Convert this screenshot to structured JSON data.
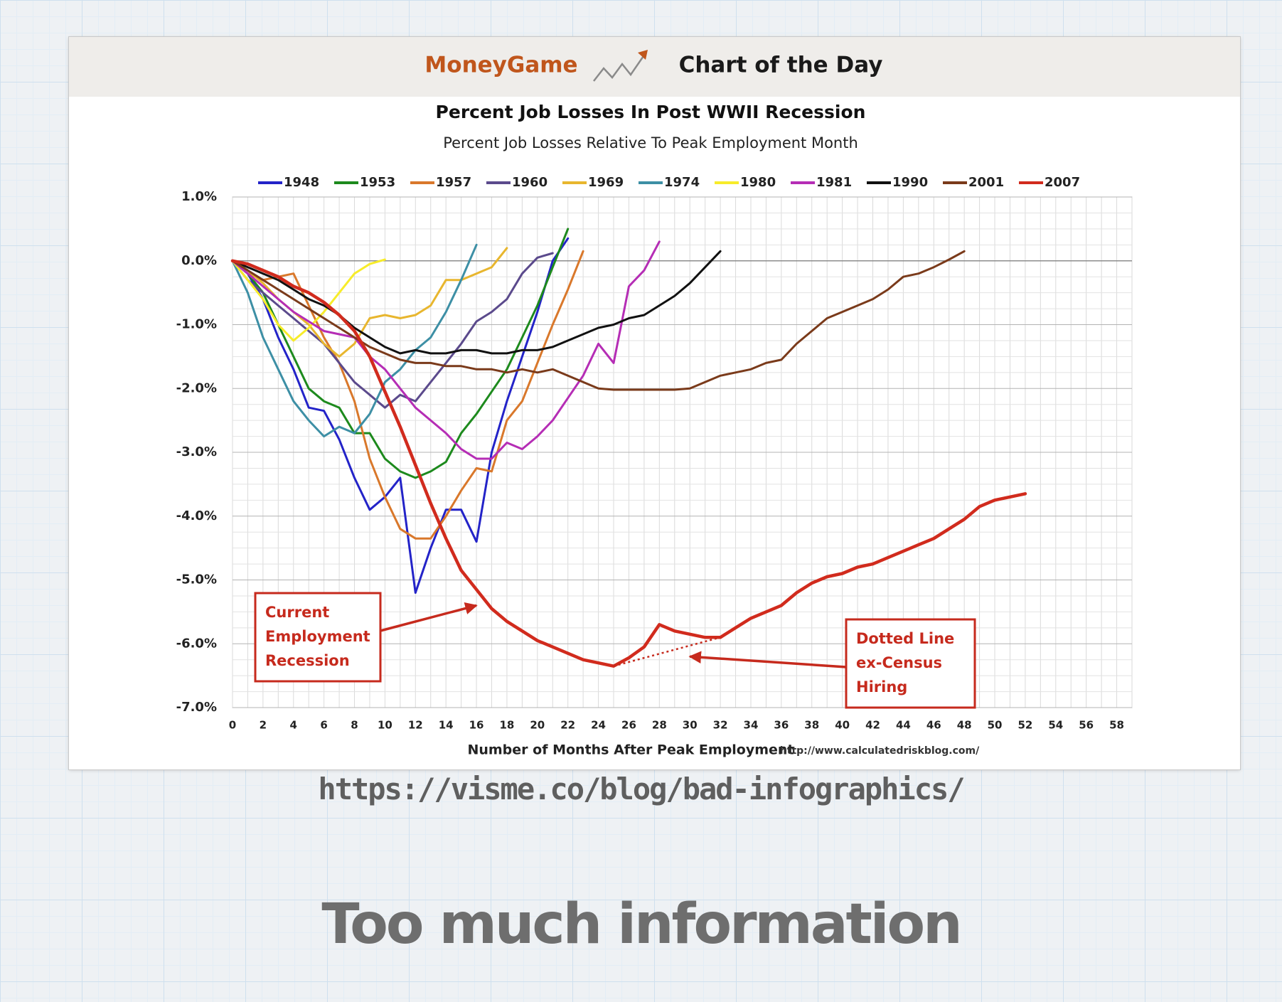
{
  "banner": {
    "brand": "MoneyGame",
    "subtitle": "Chart of the Day",
    "brand_color": "#c0561c",
    "subtitle_color": "#1a1a1a"
  },
  "slide": {
    "source_url": "https://visme.co/blog/bad-infographics/",
    "title": "Too much information"
  },
  "chart_data": {
    "type": "line",
    "title": "Percent Job Losses In Post WWII Recession",
    "subtitle": "Percent Job Losses Relative To Peak Employment Month",
    "xlabel": "Number of Months After Peak Employment",
    "ylabel": "",
    "source": "http://www.calculatedriskblog.com/",
    "xlim": [
      0,
      59
    ],
    "ylim": [
      -7.0,
      1.0
    ],
    "x_ticks": [
      0,
      2,
      4,
      6,
      8,
      10,
      12,
      14,
      16,
      18,
      20,
      22,
      24,
      26,
      28,
      30,
      32,
      34,
      36,
      38,
      40,
      42,
      44,
      46,
      48,
      50,
      52,
      54,
      56,
      58
    ],
    "y_ticks": [
      1.0,
      0.0,
      -1.0,
      -2.0,
      -3.0,
      -4.0,
      -5.0,
      -6.0,
      -7.0
    ],
    "y_tick_labels": [
      "1.0%",
      "0.0%",
      "-1.0%",
      "-2.0%",
      "-3.0%",
      "-4.0%",
      "-5.0%",
      "-6.0%",
      "-7.0%"
    ],
    "grid": true,
    "legend_position": "top",
    "series": [
      {
        "name": "1948",
        "color": "#2323c8",
        "values": [
          0,
          -0.2,
          -0.6,
          -1.2,
          -1.7,
          -2.3,
          -2.35,
          -2.8,
          -3.4,
          -3.9,
          -3.7,
          -3.4,
          -5.2,
          -4.5,
          -3.9,
          -3.9,
          -4.4,
          -3.0,
          -2.2,
          -1.5,
          -0.8,
          0,
          0.35
        ]
      },
      {
        "name": "1953",
        "color": "#1d8a1d",
        "values": [
          0,
          -0.2,
          -0.5,
          -1.0,
          -1.5,
          -2.0,
          -2.2,
          -2.3,
          -2.7,
          -2.7,
          -3.1,
          -3.3,
          -3.4,
          -3.3,
          -3.15,
          -2.7,
          -2.4,
          -2.05,
          -1.7,
          -1.2,
          -0.7,
          -0.1,
          0.5
        ]
      },
      {
        "name": "1957",
        "color": "#d9782b",
        "values": [
          0,
          -0.2,
          -0.3,
          -0.25,
          -0.2,
          -0.7,
          -1.2,
          -1.6,
          -2.2,
          -3.1,
          -3.7,
          -4.2,
          -4.35,
          -4.35,
          -4.0,
          -3.6,
          -3.25,
          -3.3,
          -2.5,
          -2.2,
          -1.6,
          -1.0,
          -0.45,
          0.15
        ]
      },
      {
        "name": "1960",
        "color": "#5b4a8c",
        "values": [
          0,
          -0.3,
          -0.5,
          -0.7,
          -0.9,
          -1.1,
          -1.3,
          -1.6,
          -1.9,
          -2.1,
          -2.3,
          -2.1,
          -2.2,
          -1.9,
          -1.6,
          -1.3,
          -0.95,
          -0.8,
          -0.6,
          -0.2,
          0.05,
          0.12
        ]
      },
      {
        "name": "1969",
        "color": "#e8b62e",
        "values": [
          0,
          -0.15,
          -0.35,
          -0.6,
          -0.8,
          -1.0,
          -1.3,
          -1.5,
          -1.3,
          -0.9,
          -0.85,
          -0.9,
          -0.85,
          -0.7,
          -0.3,
          -0.3,
          -0.2,
          -0.1,
          0.2
        ]
      },
      {
        "name": "1974",
        "color": "#3d8fa5",
        "values": [
          0,
          -0.5,
          -1.2,
          -1.7,
          -2.2,
          -2.5,
          -2.75,
          -2.6,
          -2.7,
          -2.4,
          -1.9,
          -1.7,
          -1.4,
          -1.2,
          -0.8,
          -0.3,
          0.25
        ]
      },
      {
        "name": "1980",
        "color": "#f7ec2a",
        "values": [
          0,
          -0.3,
          -0.6,
          -1.0,
          -1.25,
          -1.05,
          -0.8,
          -0.5,
          -0.2,
          -0.05,
          0.02
        ]
      },
      {
        "name": "1981",
        "color": "#b52db5",
        "values": [
          0,
          -0.2,
          -0.4,
          -0.6,
          -0.8,
          -0.95,
          -1.1,
          -1.15,
          -1.2,
          -1.5,
          -1.7,
          -2.0,
          -2.3,
          -2.5,
          -2.7,
          -2.95,
          -3.1,
          -3.1,
          -2.85,
          -2.95,
          -2.75,
          -2.5,
          -2.15,
          -1.8,
          -1.3,
          -1.6,
          -0.4,
          -0.15,
          0.3
        ]
      },
      {
        "name": "1990",
        "color": "#111111",
        "values": [
          0,
          -0.1,
          -0.2,
          -0.3,
          -0.45,
          -0.6,
          -0.7,
          -0.85,
          -1.05,
          -1.2,
          -1.35,
          -1.45,
          -1.4,
          -1.45,
          -1.45,
          -1.4,
          -1.4,
          -1.45,
          -1.45,
          -1.4,
          -1.4,
          -1.35,
          -1.25,
          -1.15,
          -1.05,
          -1.0,
          -0.9,
          -0.85,
          -0.7,
          -0.55,
          -0.35,
          -0.1,
          0.15
        ]
      },
      {
        "name": "2001",
        "color": "#7a3a1a",
        "values": [
          0,
          -0.15,
          -0.3,
          -0.45,
          -0.6,
          -0.75,
          -0.9,
          -1.05,
          -1.2,
          -1.35,
          -1.45,
          -1.55,
          -1.6,
          -1.6,
          -1.65,
          -1.65,
          -1.7,
          -1.7,
          -1.75,
          -1.7,
          -1.75,
          -1.7,
          -1.8,
          -1.9,
          -2.0,
          -2.02,
          -2.02,
          -2.02,
          -2.02,
          -2.02,
          -2.0,
          -1.9,
          -1.8,
          -1.75,
          -1.7,
          -1.6,
          -1.55,
          -1.3,
          -1.1,
          -0.9,
          -0.8,
          -0.7,
          -0.6,
          -0.45,
          -0.25,
          -0.2,
          -0.1,
          0.02,
          0.15
        ]
      },
      {
        "name": "2007",
        "color": "#d12b1d",
        "values": [
          0,
          -0.05,
          -0.15,
          -0.25,
          -0.4,
          -0.5,
          -0.65,
          -0.85,
          -1.1,
          -1.5,
          -2.05,
          -2.6,
          -3.2,
          -3.8,
          -4.35,
          -4.85,
          -5.15,
          -5.45,
          -5.65,
          -5.8,
          -5.95,
          -6.05,
          -6.15,
          -6.25,
          -6.3,
          -6.35,
          -6.22,
          -6.05,
          -5.7,
          -5.8,
          -5.85,
          -5.9,
          -5.9,
          -5.75,
          -5.6,
          -5.5,
          -5.4,
          -5.2,
          -5.05,
          -4.95,
          -4.9,
          -4.8,
          -4.75,
          -4.65,
          -4.55,
          -4.45,
          -4.35,
          -4.2,
          -4.05,
          -3.85,
          -3.75,
          -3.7,
          -3.65
        ]
      }
    ],
    "dotted_segment": {
      "x": [
        25,
        32
      ],
      "y": [
        -6.35,
        -5.9
      ]
    },
    "annotations": [
      {
        "lines": [
          "Current",
          "Employment",
          "Recession"
        ],
        "target": {
          "x": 16,
          "y": -5.4
        }
      },
      {
        "lines": [
          "Dotted Line",
          "ex-Census",
          "Hiring"
        ],
        "target": {
          "x": 30,
          "y": -6.2
        }
      }
    ]
  }
}
